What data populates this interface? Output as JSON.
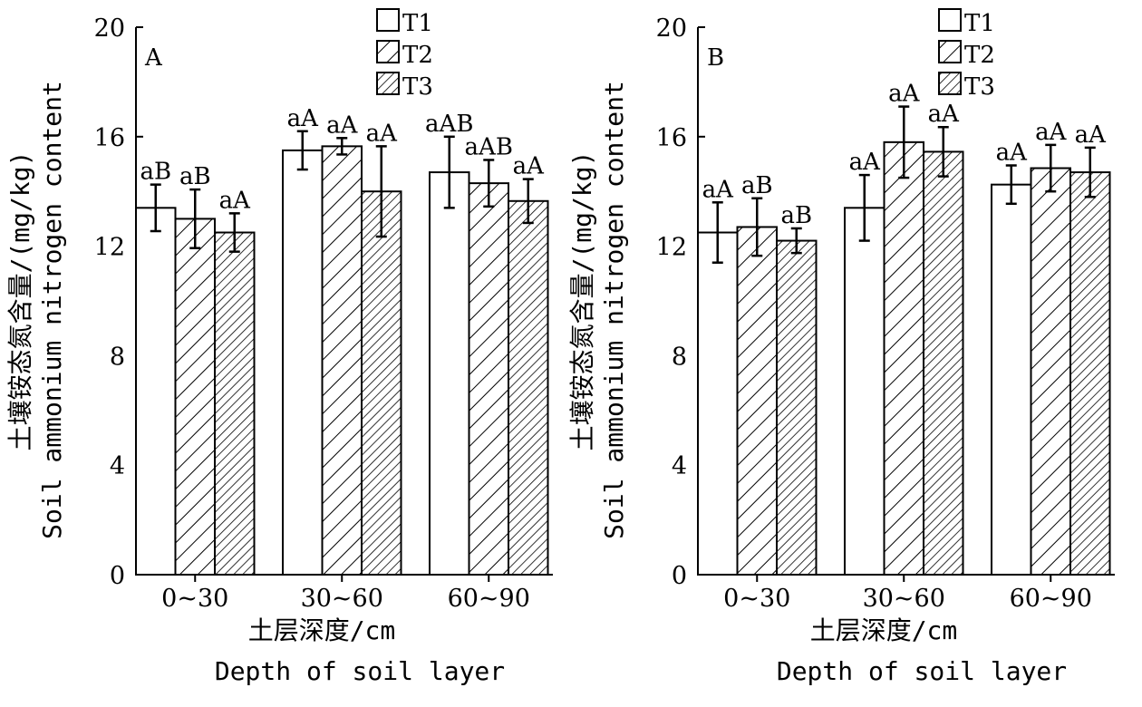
{
  "chart_data": [
    {
      "type": "bar",
      "panel_label": "A",
      "categories": [
        "0~30",
        "30~60",
        "60~90"
      ],
      "series": [
        {
          "name": "T1",
          "values": [
            13.4,
            15.5,
            14.7
          ],
          "errors": [
            0.85,
            0.7,
            1.3
          ],
          "labels": [
            "aB",
            "aA",
            "aAB"
          ]
        },
        {
          "name": "T2",
          "values": [
            13.0,
            15.65,
            14.3
          ],
          "errors": [
            1.07,
            0.3,
            0.85
          ],
          "labels": [
            "aB",
            "aA",
            "aAB"
          ]
        },
        {
          "name": "T3",
          "values": [
            12.5,
            14.0,
            13.65
          ],
          "errors": [
            0.7,
            1.65,
            0.8
          ],
          "labels": [
            "aA",
            "aA",
            "aA"
          ]
        }
      ],
      "ylabel_cn": "土壤铵态氮含量/(mg/kg)",
      "ylabel_en": "Soil ammonium nitrogen content",
      "xlabel_cn": "土层深度/cm",
      "xlabel_en": "Depth of soil layer",
      "ylim": [
        0,
        20
      ],
      "yticks": [
        "0",
        "4",
        "8",
        "12",
        "16",
        "20"
      ],
      "legend": [
        "T1",
        "T2",
        "T3"
      ],
      "legend_position": "top-right"
    },
    {
      "type": "bar",
      "panel_label": "B",
      "categories": [
        "0~30",
        "30~60",
        "60~90"
      ],
      "series": [
        {
          "name": "T1",
          "values": [
            12.5,
            13.4,
            14.25
          ],
          "errors": [
            1.1,
            1.2,
            0.7
          ],
          "labels": [
            "aA",
            "aA",
            "aA"
          ]
        },
        {
          "name": "T2",
          "values": [
            12.7,
            15.8,
            14.85
          ],
          "errors": [
            1.05,
            1.3,
            0.85
          ],
          "labels": [
            "aB",
            "aA",
            "aA"
          ]
        },
        {
          "name": "T3",
          "values": [
            12.2,
            15.45,
            14.7
          ],
          "errors": [
            0.45,
            0.9,
            0.9
          ],
          "labels": [
            "aB",
            "aA",
            "aA"
          ]
        }
      ],
      "ylabel_cn": "土壤铵态氮含量/(mg/kg)",
      "ylabel_en": "Soil ammonium nitrogen content",
      "xlabel_cn": "土层深度/cm",
      "xlabel_en": "Depth of soil layer",
      "ylim": [
        0,
        20
      ],
      "yticks": [
        "0",
        "4",
        "8",
        "12",
        "16",
        "20"
      ],
      "legend": [
        "T1",
        "T2",
        "T3"
      ],
      "legend_position": "top-right"
    }
  ]
}
